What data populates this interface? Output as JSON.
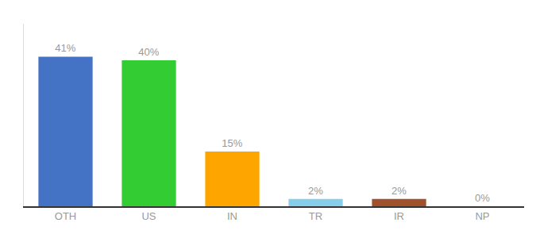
{
  "chart_data": {
    "type": "bar",
    "categories": [
      "OTH",
      "US",
      "IN",
      "TR",
      "IR",
      "NP"
    ],
    "values": [
      41,
      40,
      15,
      2,
      2,
      0
    ],
    "value_labels": [
      "41%",
      "40%",
      "15%",
      "2%",
      "2%",
      "0%"
    ],
    "colors": [
      "#4472C4",
      "#33CC33",
      "#FFA500",
      "#87CEEB",
      "#A0522D",
      "#CCCCCC"
    ],
    "ylim": [
      0,
      50
    ],
    "grid": false,
    "data_labels": true,
    "tick_labels": "x"
  }
}
